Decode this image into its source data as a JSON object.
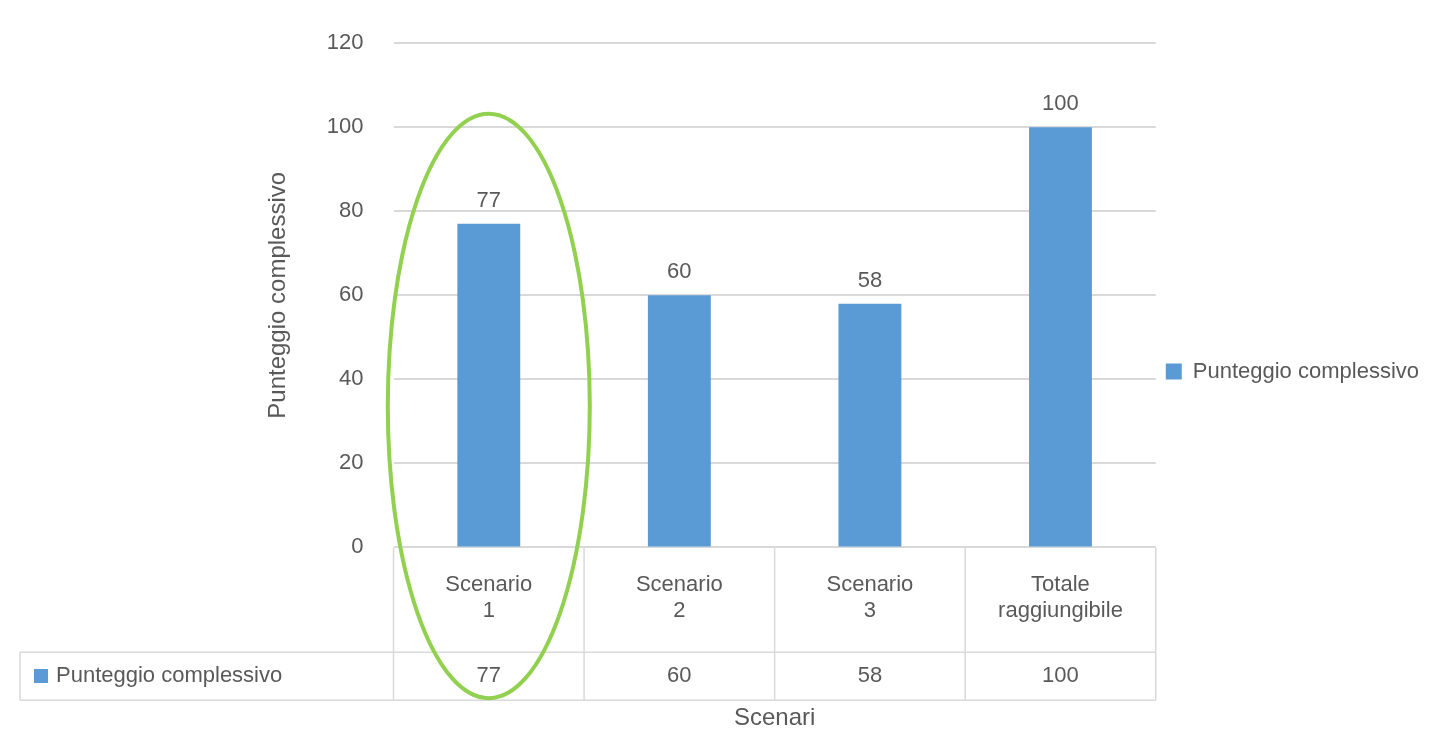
{
  "chart_data": {
    "type": "bar",
    "xlabel": "Scenari",
    "ylabel": "Punteggio complessivo",
    "categories": [
      "Scenario 1",
      "Scenario 2",
      "Scenario 3",
      "Totale raggiungibile"
    ],
    "series": [
      {
        "name": "Punteggio complessivo",
        "color": "#5b9bd5",
        "values": [
          77,
          60,
          58,
          100
        ],
        "value_labels": [
          "77",
          "60",
          "58",
          "100"
        ]
      }
    ],
    "annotations": [
      "77",
      "60",
      "58",
      "100"
    ],
    "ylim": [
      0,
      120
    ],
    "yticks": [
      0,
      20,
      40,
      60,
      80,
      100,
      120
    ],
    "grid": "y",
    "legend": "right",
    "data_labels": true
  }
}
